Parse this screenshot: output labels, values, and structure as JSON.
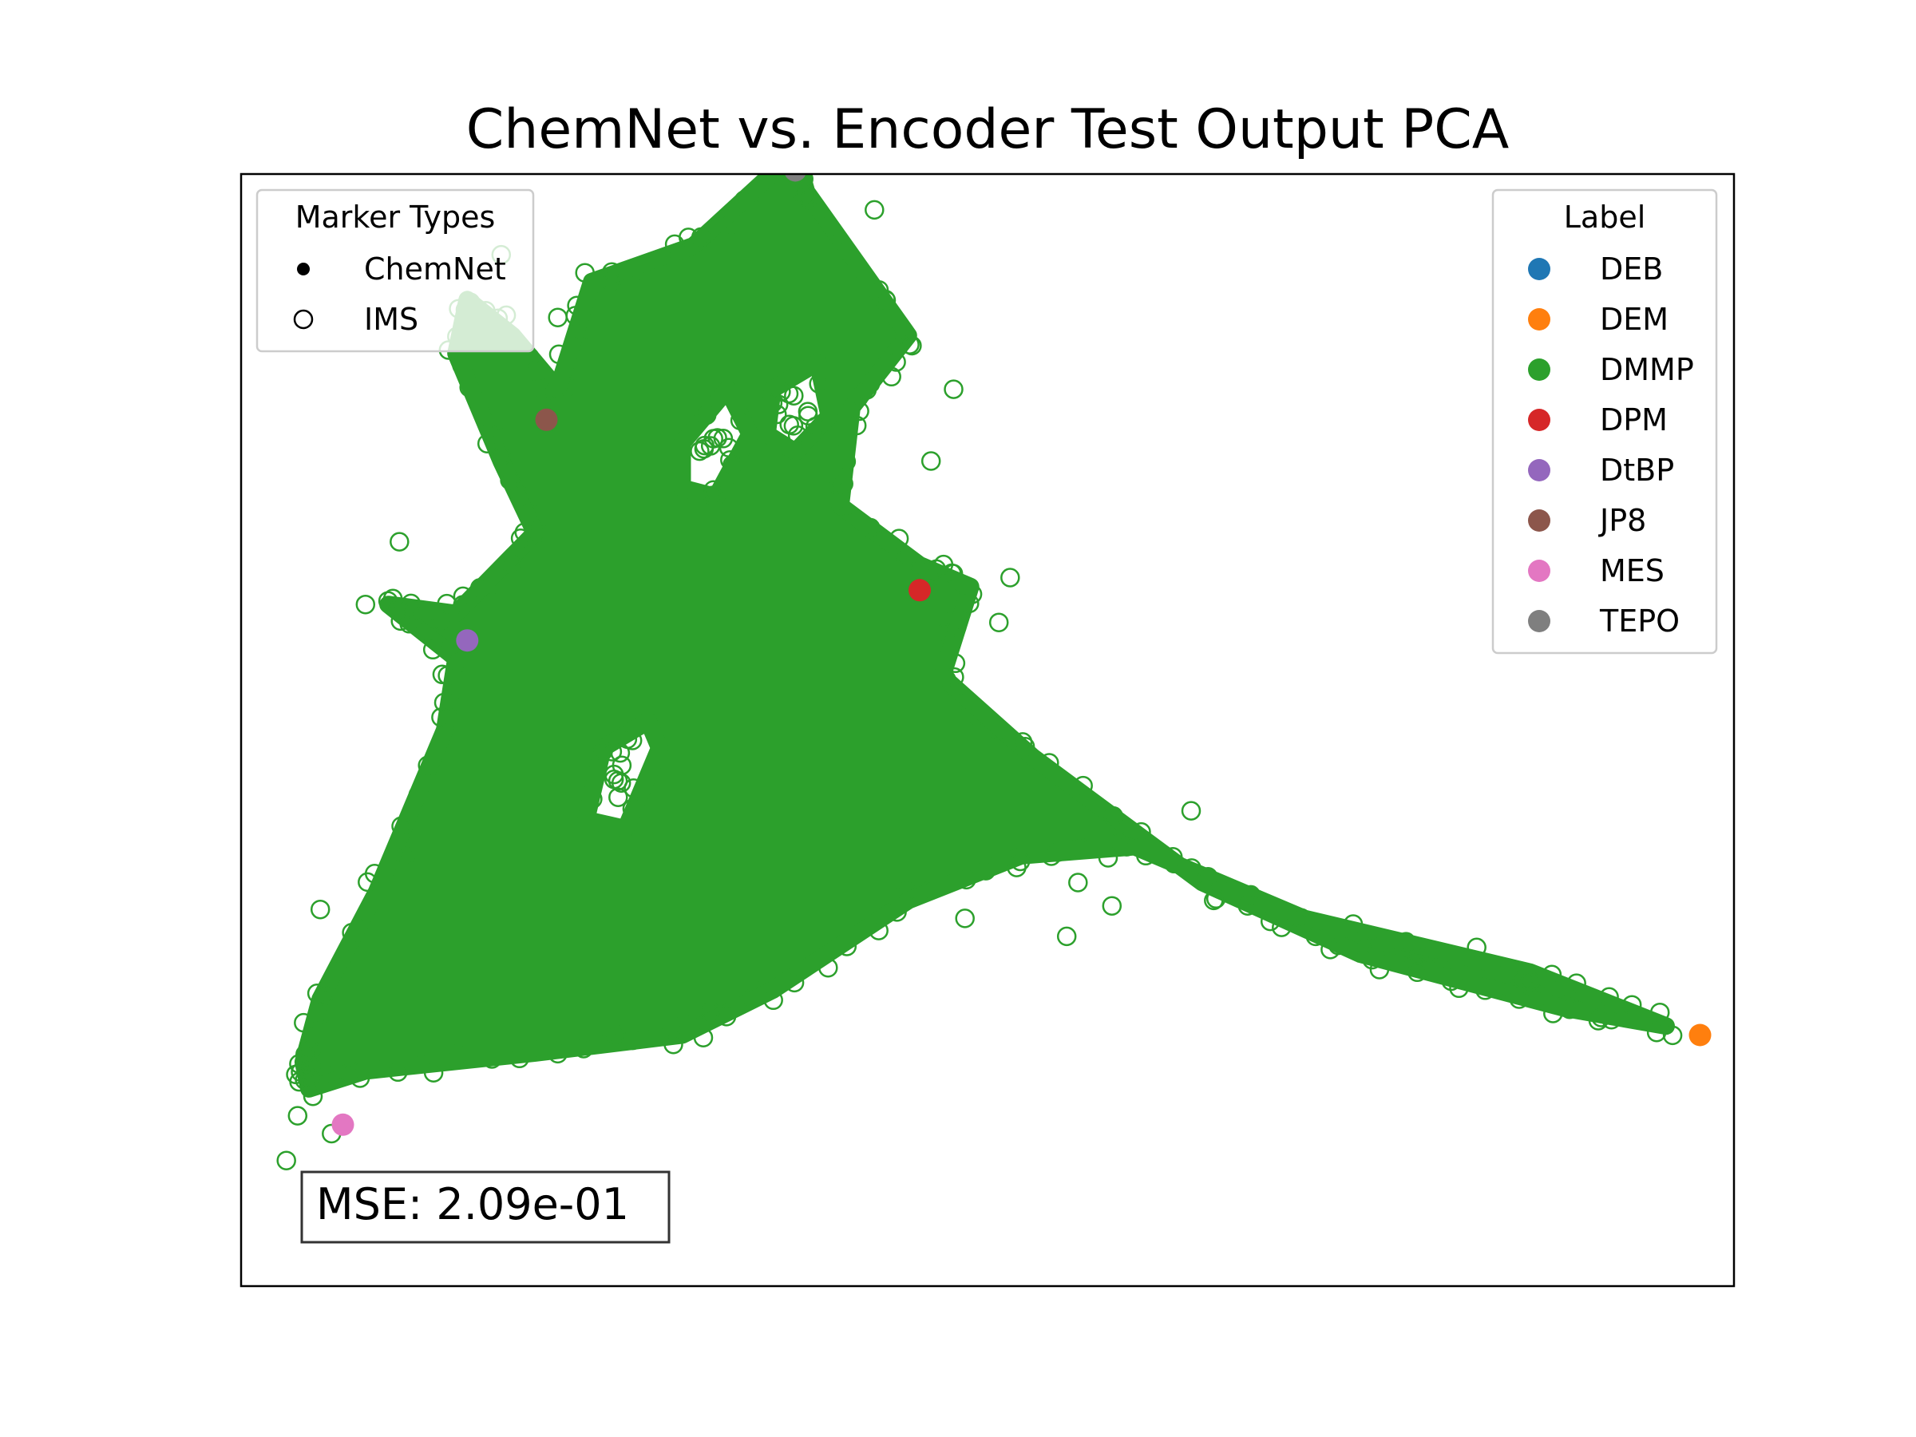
{
  "chart_data": {
    "type": "scatter",
    "title": "ChemNet vs. Encoder Test Output PCA",
    "xlabel": "",
    "ylabel": "",
    "xlim": [
      -2.4,
      10.8
    ],
    "ylim": [
      -1.4,
      4.8
    ],
    "axes_ticks_visible": false,
    "grid": false,
    "annotation": "MSE: 2.09e-01",
    "marker_legend": {
      "title": "Marker Types",
      "placement": "top-left",
      "entries": [
        {
          "label": "ChemNet",
          "marker": "filled"
        },
        {
          "label": "IMS",
          "marker": "hollow"
        }
      ]
    },
    "label_legend": {
      "title": "Label",
      "placement": "top-right",
      "entries": [
        {
          "label": "DEB",
          "color": "#1f77b4"
        },
        {
          "label": "DEM",
          "color": "#ff7f0e"
        },
        {
          "label": "DMMP",
          "color": "#2ca02c"
        },
        {
          "label": "DPM",
          "color": "#d62728"
        },
        {
          "label": "DtBP",
          "color": "#9467bd"
        },
        {
          "label": "JP8",
          "color": "#8c564b"
        },
        {
          "label": "MES",
          "color": "#e377c2"
        },
        {
          "label": "TEPO",
          "color": "#7f7f7f"
        }
      ]
    },
    "chemnet_points": [
      {
        "label": "DEM",
        "color": "#ff7f0e",
        "x": 10.5,
        "y": 0.0
      },
      {
        "label": "DPM",
        "color": "#d62728",
        "x": 3.6,
        "y": 2.48
      },
      {
        "label": "DtBP",
        "color": "#9467bd",
        "x": -0.4,
        "y": 2.2
      },
      {
        "label": "JP8",
        "color": "#8c564b",
        "x": 0.3,
        "y": 3.43
      },
      {
        "label": "TEPO",
        "color": "#7f7f7f",
        "x": 2.5,
        "y": 4.82
      },
      {
        "label": "MES",
        "color": "#e377c2",
        "x": -1.5,
        "y": -0.5
      }
    ],
    "ims_series": {
      "name": "DMMP",
      "color": "#2ca02c",
      "hull": [
        [
          -1.8,
          -0.3
        ],
        [
          -1.3,
          -0.2
        ],
        [
          0.2,
          -0.1
        ],
        [
          1.5,
          0.0
        ],
        [
          2.3,
          0.25
        ],
        [
          3.5,
          0.75
        ],
        [
          4.5,
          1.0
        ],
        [
          5.5,
          1.05
        ],
        [
          7.0,
          0.65
        ],
        [
          9.0,
          0.35
        ],
        [
          10.2,
          0.05
        ],
        [
          9.3,
          0.15
        ],
        [
          7.5,
          0.45
        ],
        [
          6.1,
          0.85
        ],
        [
          4.6,
          1.55
        ],
        [
          3.8,
          2.0
        ],
        [
          4.05,
          2.5
        ],
        [
          3.6,
          2.62
        ],
        [
          2.9,
          2.95
        ],
        [
          3.0,
          3.5
        ],
        [
          3.5,
          3.9
        ],
        [
          2.6,
          4.7
        ],
        [
          2.5,
          4.92
        ],
        [
          1.6,
          4.4
        ],
        [
          0.7,
          4.2
        ],
        [
          0.4,
          3.6
        ],
        [
          0.0,
          3.9
        ],
        [
          -0.4,
          4.1
        ],
        [
          -0.5,
          3.8
        ],
        [
          -0.1,
          3.2
        ],
        [
          0.2,
          2.8
        ],
        [
          -0.5,
          2.35
        ],
        [
          -1.1,
          2.4
        ],
        [
          -0.5,
          2.1
        ],
        [
          -0.6,
          1.7
        ],
        [
          -1.2,
          0.8
        ],
        [
          -1.7,
          0.2
        ],
        [
          -1.85,
          -0.15
        ]
      ],
      "holes": [
        [
          [
            0.8,
            1.6
          ],
          [
            1.2,
            1.75
          ],
          [
            1.3,
            1.6
          ],
          [
            1.0,
            1.15
          ],
          [
            0.65,
            1.2
          ]
        ],
        [
          [
            1.5,
            3.3
          ],
          [
            1.9,
            3.6
          ],
          [
            2.1,
            3.35
          ],
          [
            1.8,
            3.0
          ],
          [
            1.5,
            3.05
          ]
        ],
        [
          [
            2.3,
            3.6
          ],
          [
            2.7,
            3.75
          ],
          [
            2.8,
            3.45
          ],
          [
            2.5,
            3.25
          ],
          [
            2.25,
            3.35
          ]
        ]
      ],
      "outliers": [
        [
          6.2,
          0.75
        ],
        [
          6.5,
          0.72
        ],
        [
          7.1,
          0.55
        ],
        [
          7.3,
          0.5
        ],
        [
          7.6,
          0.42
        ],
        [
          8.0,
          0.35
        ],
        [
          8.3,
          0.3
        ],
        [
          8.6,
          0.25
        ],
        [
          8.9,
          0.2
        ],
        [
          9.2,
          0.12
        ],
        [
          9.6,
          0.08
        ],
        [
          6.0,
          1.25
        ],
        [
          5.6,
          1.0
        ],
        [
          5.0,
          0.85
        ],
        [
          4.9,
          0.55
        ],
        [
          4.0,
          0.65
        ],
        [
          4.3,
          2.3
        ],
        [
          4.4,
          2.55
        ],
        [
          3.9,
          3.6
        ],
        [
          3.7,
          3.2
        ],
        [
          3.2,
          4.6
        ],
        [
          2.6,
          5.05
        ],
        [
          3.3,
          4.1
        ],
        [
          -0.1,
          4.35
        ],
        [
          0.4,
          4.0
        ],
        [
          -1.3,
          2.4
        ],
        [
          -1.0,
          2.75
        ],
        [
          -1.9,
          -0.45
        ],
        [
          -1.6,
          -0.55
        ],
        [
          -2.0,
          -0.7
        ],
        [
          -1.7,
          0.7
        ],
        [
          5.3,
          0.72
        ],
        [
          6.8,
          0.6
        ],
        [
          7.9,
          0.52
        ],
        [
          8.1,
          0.45
        ],
        [
          9.0,
          0.3
        ]
      ]
    }
  }
}
